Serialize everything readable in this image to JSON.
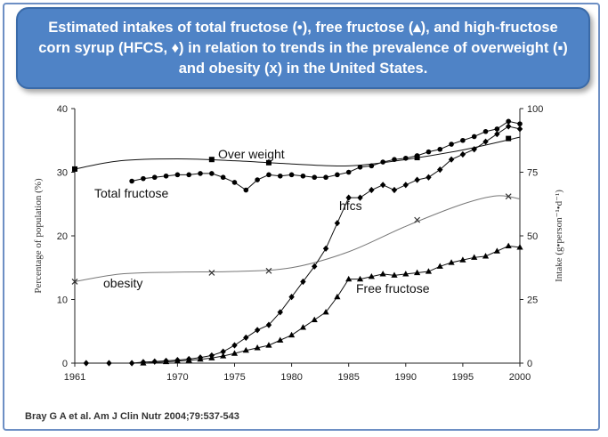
{
  "title": "Estimated intakes of total fructose (•), free fructose (▴), and high-fructose corn syrup (HFCS, ♦) in relation to trends in the prevalence of overweight (▪) and obesity (x) in the United States.",
  "citation": "Bray G A et al. Am J Clin Nutr 2004;79:537-543",
  "colors": {
    "title_bg": "#4f83c6",
    "series_line": "#111111",
    "obesity_line": "#777777"
  },
  "chart_data": {
    "type": "line",
    "xlim": [
      1961,
      2000
    ],
    "x_ticks": [
      "1961",
      "1970",
      "1975",
      "1980",
      "1985",
      "1990",
      "1995",
      "2000"
    ],
    "y_left": {
      "label": "Percentage of population (%)",
      "ylim": [
        0,
        40
      ],
      "ticks": [
        "0",
        "10",
        "20",
        "30",
        "40"
      ]
    },
    "y_right": {
      "label": "Intake (g•person⁻¹•d⁻¹)",
      "ylim": [
        0,
        100
      ],
      "ticks": [
        "0",
        "25",
        "50",
        "75",
        "100"
      ]
    },
    "series": [
      {
        "label": "Over weight",
        "axis": "left",
        "marker": "square",
        "points": [
          [
            1961,
            30.5
          ],
          [
            1973,
            32.0
          ],
          [
            1978,
            31.5
          ],
          [
            1991,
            32.3
          ],
          [
            1999,
            35.3
          ]
        ],
        "curve": [
          [
            1961,
            30.5
          ],
          [
            1965,
            31.8
          ],
          [
            1970,
            32.1
          ],
          [
            1975,
            31.8
          ],
          [
            1980,
            31.3
          ],
          [
            1985,
            31.0
          ],
          [
            1990,
            32.0
          ],
          [
            1995,
            33.5
          ],
          [
            2000,
            35.5
          ]
        ]
      },
      {
        "label": "obesity",
        "axis": "left",
        "marker": "x",
        "points": [
          [
            1961,
            12.8
          ],
          [
            1973,
            14.2
          ],
          [
            1978,
            14.5
          ],
          [
            1991,
            22.5
          ],
          [
            1999,
            26.2
          ]
        ],
        "curve": [
          [
            1961,
            12.8
          ],
          [
            1965,
            14.0
          ],
          [
            1970,
            14.3
          ],
          [
            1975,
            14.4
          ],
          [
            1980,
            15.0
          ],
          [
            1985,
            17.5
          ],
          [
            1990,
            21.5
          ],
          [
            1995,
            25.0
          ],
          [
            1998,
            26.3
          ],
          [
            2000,
            25.8
          ]
        ]
      },
      {
        "label": "Total fructose",
        "axis": "right",
        "marker": "circle",
        "points": [
          [
            1966,
            71.5
          ],
          [
            1967,
            72.5
          ],
          [
            1968,
            73
          ],
          [
            1969,
            73.5
          ],
          [
            1970,
            74
          ],
          [
            1971,
            74
          ],
          [
            1972,
            74.5
          ],
          [
            1973,
            74.5
          ],
          [
            1974,
            73
          ],
          [
            1975,
            71
          ],
          [
            1976,
            68
          ],
          [
            1977,
            72
          ],
          [
            1978,
            74
          ],
          [
            1979,
            73.5
          ],
          [
            1980,
            74
          ],
          [
            1981,
            73.5
          ],
          [
            1982,
            73
          ],
          [
            1983,
            73
          ],
          [
            1984,
            74
          ],
          [
            1985,
            75
          ],
          [
            1986,
            77
          ],
          [
            1987,
            77.5
          ],
          [
            1988,
            79
          ],
          [
            1989,
            80
          ],
          [
            1990,
            80.5
          ],
          [
            1991,
            81.5
          ],
          [
            1992,
            83
          ],
          [
            1993,
            84
          ],
          [
            1994,
            86
          ],
          [
            1995,
            87.5
          ],
          [
            1996,
            89
          ],
          [
            1997,
            91
          ],
          [
            1998,
            92
          ],
          [
            1999,
            95
          ],
          [
            2000,
            94
          ]
        ]
      },
      {
        "label": "hfcs",
        "axis": "right",
        "marker": "diamond",
        "points": [
          [
            1962,
            0
          ],
          [
            1964,
            0
          ],
          [
            1966,
            0
          ],
          [
            1967,
            0.4
          ],
          [
            1968,
            0.6
          ],
          [
            1969,
            0.9
          ],
          [
            1970,
            1.2
          ],
          [
            1971,
            1.6
          ],
          [
            1972,
            2.2
          ],
          [
            1973,
            3
          ],
          [
            1974,
            4.5
          ],
          [
            1975,
            7
          ],
          [
            1976,
            10
          ],
          [
            1977,
            13
          ],
          [
            1978,
            15
          ],
          [
            1979,
            20
          ],
          [
            1980,
            26
          ],
          [
            1981,
            32
          ],
          [
            1982,
            38
          ],
          [
            1983,
            45
          ],
          [
            1984,
            55
          ],
          [
            1985,
            65
          ],
          [
            1986,
            65
          ],
          [
            1987,
            68
          ],
          [
            1988,
            70
          ],
          [
            1989,
            68
          ],
          [
            1990,
            70
          ],
          [
            1991,
            72
          ],
          [
            1992,
            73
          ],
          [
            1993,
            76
          ],
          [
            1994,
            80
          ],
          [
            1995,
            82
          ],
          [
            1996,
            84
          ],
          [
            1997,
            87
          ],
          [
            1998,
            90
          ],
          [
            1999,
            93
          ],
          [
            2000,
            92
          ]
        ]
      },
      {
        "label": "Free fructose",
        "axis": "right",
        "marker": "triangle",
        "points": [
          [
            1967,
            0
          ],
          [
            1969,
            0.5
          ],
          [
            1970,
            0.8
          ],
          [
            1971,
            1.1
          ],
          [
            1972,
            1.5
          ],
          [
            1973,
            2
          ],
          [
            1974,
            2.8
          ],
          [
            1975,
            3.8
          ],
          [
            1976,
            5
          ],
          [
            1977,
            6
          ],
          [
            1978,
            7
          ],
          [
            1979,
            9
          ],
          [
            1980,
            11
          ],
          [
            1981,
            14
          ],
          [
            1982,
            17
          ],
          [
            1983,
            20
          ],
          [
            1984,
            26
          ],
          [
            1985,
            33
          ],
          [
            1986,
            33
          ],
          [
            1987,
            34
          ],
          [
            1988,
            35
          ],
          [
            1989,
            34.5
          ],
          [
            1990,
            35
          ],
          [
            1991,
            35.5
          ],
          [
            1992,
            36
          ],
          [
            1993,
            38
          ],
          [
            1994,
            39.5
          ],
          [
            1995,
            40.5
          ],
          [
            1996,
            41.5
          ],
          [
            1997,
            42
          ],
          [
            1998,
            44
          ],
          [
            1999,
            46
          ],
          [
            2000,
            45.5
          ]
        ]
      }
    ]
  }
}
